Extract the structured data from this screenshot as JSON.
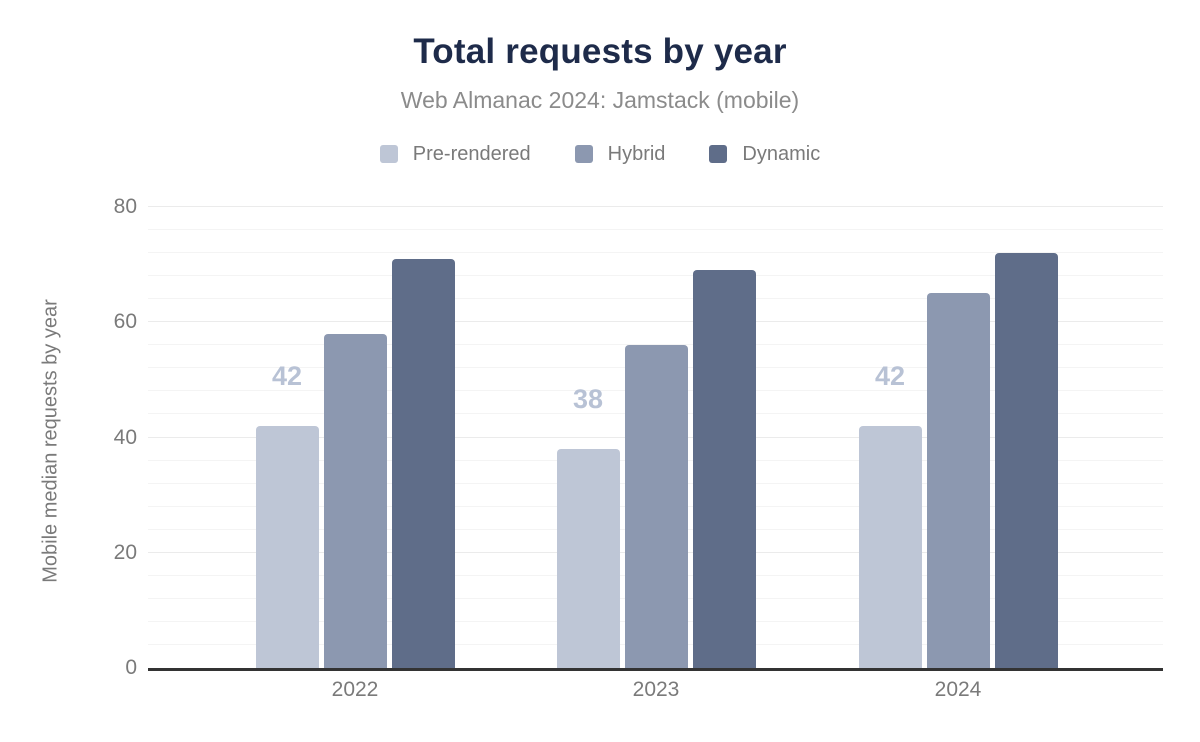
{
  "header": {
    "title": "Total requests by year",
    "subtitle": "Web Almanac 2024: Jamstack (mobile)"
  },
  "chart_data": {
    "type": "bar",
    "title": "Total requests by year",
    "subtitle": "Web Almanac 2024: Jamstack (mobile)",
    "categories": [
      "2022",
      "2023",
      "2024"
    ],
    "series": [
      {
        "name": "Pre-rendered",
        "color": "#bec6d6",
        "values": [
          42,
          38,
          42
        ]
      },
      {
        "name": "Hybrid",
        "color": "#8c98b0",
        "values": [
          58,
          56,
          65
        ]
      },
      {
        "name": "Dynamic",
        "color": "#5f6d89",
        "values": [
          71,
          69,
          72
        ]
      }
    ],
    "bar_labels": {
      "series_index": 0,
      "values": [
        "42",
        "38",
        "42"
      ],
      "color": "#b8c2d5"
    },
    "ylabel": "Mobile median requests by year",
    "xlabel": "",
    "ylim": [
      0,
      80
    ],
    "yticks": [
      0,
      20,
      40,
      60,
      80
    ],
    "minor_grid_step": 4,
    "grid": true,
    "legend_position": "top"
  },
  "colors": {
    "title": "#1e2b4a",
    "subtitle": "#8b8b8b",
    "axis_text": "#7a7a7a",
    "axis_line": "#333333",
    "major_grid": "#ebebeb",
    "minor_grid": "#f4f4f4",
    "background": "#ffffff"
  }
}
